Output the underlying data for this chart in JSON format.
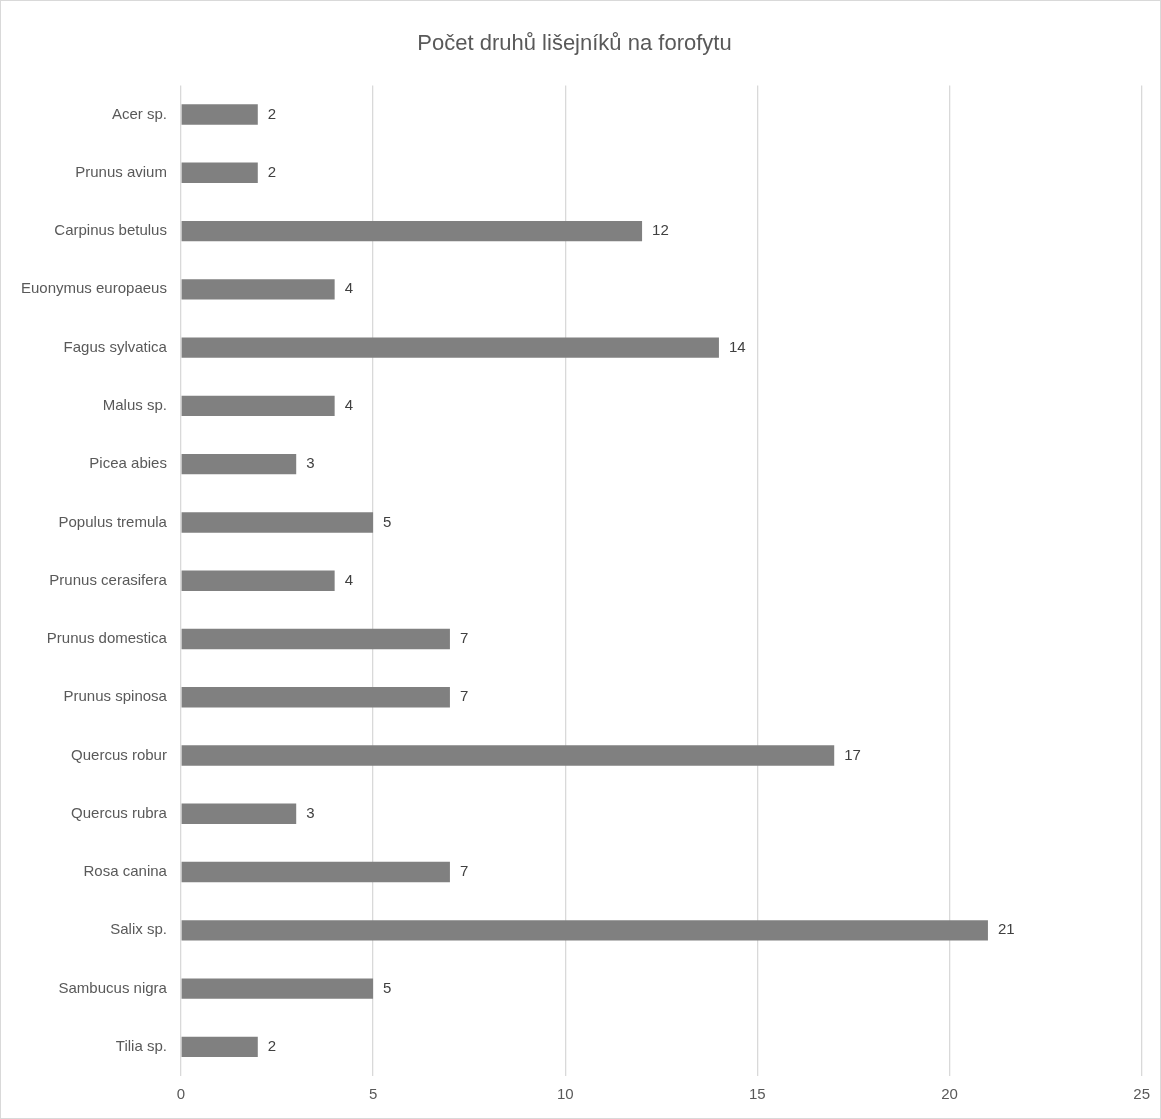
{
  "chart_data": {
    "type": "bar",
    "orientation": "horizontal",
    "title": "Počet druhů lišejníků na forofytu",
    "categories": [
      "Acer sp.",
      "Prunus avium",
      "Carpinus betulus",
      "Euonymus europaeus",
      "Fagus sylvatica",
      "Malus sp.",
      "Picea abies",
      "Populus tremula",
      "Prunus cerasifera",
      "Prunus domestica",
      "Prunus spinosa",
      "Quercus robur",
      "Quercus rubra",
      "Rosa canina",
      "Salix sp.",
      "Sambucus nigra",
      "Tilia sp."
    ],
    "values": [
      2,
      2,
      12,
      4,
      14,
      4,
      3,
      5,
      4,
      7,
      7,
      17,
      3,
      7,
      21,
      5,
      2
    ],
    "color": "#808080",
    "xlim": [
      0,
      25
    ],
    "xticks": [
      0,
      5,
      10,
      15,
      20,
      25
    ],
    "grid": "x",
    "data_labels": true
  }
}
